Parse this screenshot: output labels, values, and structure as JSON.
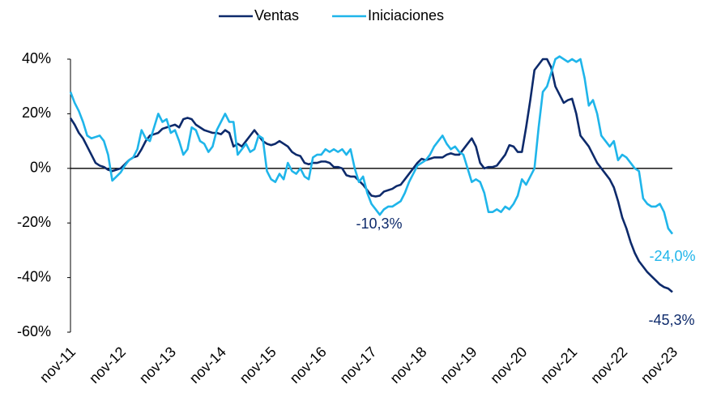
{
  "chart_data": {
    "type": "line",
    "categories": [
      "nov-11",
      null,
      null,
      null,
      null,
      null,
      null,
      null,
      null,
      null,
      null,
      null,
      "nov-12",
      null,
      null,
      null,
      null,
      null,
      null,
      null,
      null,
      null,
      null,
      null,
      "nov-13",
      null,
      null,
      null,
      null,
      null,
      null,
      null,
      null,
      null,
      null,
      null,
      "nov-14",
      null,
      null,
      null,
      null,
      null,
      null,
      null,
      null,
      null,
      null,
      null,
      "nov-15",
      null,
      null,
      null,
      null,
      null,
      null,
      null,
      null,
      null,
      null,
      null,
      "nov-16",
      null,
      null,
      null,
      null,
      null,
      null,
      null,
      null,
      null,
      null,
      null,
      "nov-17",
      null,
      null,
      null,
      null,
      null,
      null,
      null,
      null,
      null,
      null,
      null,
      "nov-18",
      null,
      null,
      null,
      null,
      null,
      null,
      null,
      null,
      null,
      null,
      null,
      "nov-19",
      null,
      null,
      null,
      null,
      null,
      null,
      null,
      null,
      null,
      null,
      null,
      "nov-20",
      null,
      null,
      null,
      null,
      null,
      null,
      null,
      null,
      null,
      null,
      null,
      "nov-21",
      null,
      null,
      null,
      null,
      null,
      null,
      null,
      null,
      null,
      null,
      null,
      "nov-22",
      null,
      null,
      null,
      null,
      null,
      null,
      null,
      null,
      null,
      null,
      null,
      "nov-23"
    ],
    "series": [
      {
        "name": "Ventas",
        "color": "#0d2a6b",
        "values": [
          18.4,
          16,
          13,
          11,
          8,
          5,
          2,
          1,
          0.5,
          -0.5,
          -1,
          -0.5,
          0,
          1.5,
          3,
          4,
          4.5,
          7,
          10,
          12,
          12.5,
          13,
          14.5,
          15,
          15.5,
          16,
          15,
          18,
          18.5,
          18,
          16,
          15,
          14,
          13.5,
          13,
          13,
          12.5,
          14,
          13,
          8,
          9,
          8,
          10,
          12,
          14,
          12,
          10,
          9,
          8.5,
          9,
          10,
          9,
          8,
          6,
          5,
          4.5,
          2,
          1.5,
          2,
          2,
          2.5,
          2.5,
          2,
          0.5,
          0.5,
          0,
          -2.5,
          -3,
          -3,
          -4.5,
          -6,
          -8,
          -10,
          -10.3,
          -10,
          -8.5,
          -8,
          -7.5,
          -6.5,
          -6,
          -4,
          -2,
          0,
          2,
          3.5,
          3,
          3.5,
          4,
          4,
          4,
          5,
          5.5,
          5,
          5,
          7,
          9,
          11,
          8,
          2,
          0,
          0.5,
          0.5,
          1,
          3,
          5,
          8.5,
          8,
          6,
          6,
          15,
          25,
          36,
          38,
          40,
          40,
          37,
          30,
          27,
          24,
          25,
          25.5,
          20,
          12,
          10,
          8,
          5,
          2,
          0,
          -2,
          -4,
          -7,
          -12,
          -18,
          -22,
          -27,
          -31,
          -34,
          -36,
          -38,
          -39.5,
          -41,
          -42.5,
          -43.5,
          -44,
          -45.3
        ]
      },
      {
        "name": "Iniciaciones",
        "color": "#1fb5ea",
        "values": [
          28,
          24,
          21,
          17,
          12,
          11,
          11.5,
          12,
          10,
          5,
          -4.5,
          -3,
          -1.5,
          1,
          3,
          4,
          7,
          14,
          11,
          10,
          15,
          20,
          17,
          18,
          13,
          14,
          10,
          5,
          7,
          15,
          14,
          10,
          9,
          6,
          8,
          14,
          17,
          20,
          17,
          17,
          5,
          7,
          9,
          6,
          7,
          12,
          11,
          -1,
          -4,
          -5,
          -2,
          -4,
          2,
          -1,
          -2,
          0,
          -3,
          -4,
          4,
          5,
          5,
          7,
          6,
          7,
          6,
          7,
          5,
          7,
          0,
          -5,
          -3,
          -9,
          -13,
          -15,
          -17,
          -15,
          -14,
          -14,
          -13,
          -12,
          -9,
          -5,
          -2,
          1,
          2,
          3,
          5,
          8,
          10,
          12,
          9,
          7,
          8,
          6,
          5,
          0,
          -5,
          -4,
          -5,
          -9,
          -16,
          -16,
          -15,
          -16,
          -14,
          -15,
          -13,
          -10,
          -4,
          -6,
          -3,
          0,
          15,
          28,
          30,
          35,
          40,
          41,
          40,
          39,
          40,
          39,
          40,
          33,
          23,
          25,
          20,
          12,
          10,
          8,
          10,
          3,
          5,
          4,
          2,
          0,
          -1,
          -11,
          -13,
          -14,
          -14,
          -13,
          -16,
          -22,
          -24.0
        ]
      }
    ],
    "ylim": [
      -60,
      40
    ],
    "yticks": [
      {
        "value": -60,
        "label": "-60%"
      },
      {
        "value": -40,
        "label": "-40%"
      },
      {
        "value": -20,
        "label": "-20%"
      },
      {
        "value": 0,
        "label": "0%"
      },
      {
        "value": 20,
        "label": "20%"
      },
      {
        "value": 40,
        "label": "40%"
      }
    ],
    "annotations": [
      "-10,3%",
      "-24,0%",
      "-45,3%"
    ],
    "legend": "top"
  }
}
